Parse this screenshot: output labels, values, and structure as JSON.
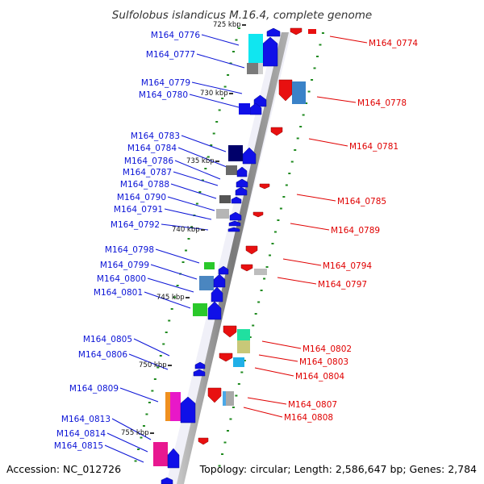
{
  "header": {
    "title": "Sulfolobus islandicus M.16.4, complete genome"
  },
  "footer": {
    "accession": "Accession: NC_012726",
    "topology": "Topology: circular; Length: 2,586,647 bp; Genes: 2,784"
  },
  "colors": {
    "forward_label": "#0b14d6",
    "reverse_label": "#e00000",
    "forward_arrow": "#1010e8",
    "reverse_arrow": "#e81010",
    "backbone": "#8c8c8c",
    "tick": "#1e8a1e"
  },
  "scale_labels": [
    {
      "text": "725 kbp",
      "kbp": 725
    },
    {
      "text": "730 kbp",
      "kbp": 730
    },
    {
      "text": "735 kbp",
      "kbp": 735
    },
    {
      "text": "740 kbp",
      "kbp": 740
    },
    {
      "text": "745 kbp",
      "kbp": 745
    },
    {
      "text": "750 kbp",
      "kbp": 750
    },
    {
      "text": "755 kbp",
      "kbp": 755
    }
  ],
  "forward_genes": [
    {
      "label": "M164_0776"
    },
    {
      "label": "M164_0777"
    },
    {
      "label": "M164_0779"
    },
    {
      "label": "M164_0780"
    },
    {
      "label": "M164_0783"
    },
    {
      "label": "M164_0784"
    },
    {
      "label": "M164_0786"
    },
    {
      "label": "M164_0787"
    },
    {
      "label": "M164_0788"
    },
    {
      "label": "M164_0790"
    },
    {
      "label": "M164_0791"
    },
    {
      "label": "M164_0792"
    },
    {
      "label": "M164_0798"
    },
    {
      "label": "M164_0799"
    },
    {
      "label": "M164_0800"
    },
    {
      "label": "M164_0801"
    },
    {
      "label": "M164_0805"
    },
    {
      "label": "M164_0806"
    },
    {
      "label": "M164_0809"
    },
    {
      "label": "M164_0813"
    },
    {
      "label": "M164_0814"
    },
    {
      "label": "M164_0815"
    }
  ],
  "reverse_genes": [
    {
      "label": "M164_0774"
    },
    {
      "label": "M164_0778"
    },
    {
      "label": "M164_0781"
    },
    {
      "label": "M164_0785"
    },
    {
      "label": "M164_0789"
    },
    {
      "label": "M164_0794"
    },
    {
      "label": "M164_0797"
    },
    {
      "label": "M164_0802"
    },
    {
      "label": "M164_0803"
    },
    {
      "label": "M164_0804"
    },
    {
      "label": "M164_0807"
    },
    {
      "label": "M164_0808"
    }
  ]
}
